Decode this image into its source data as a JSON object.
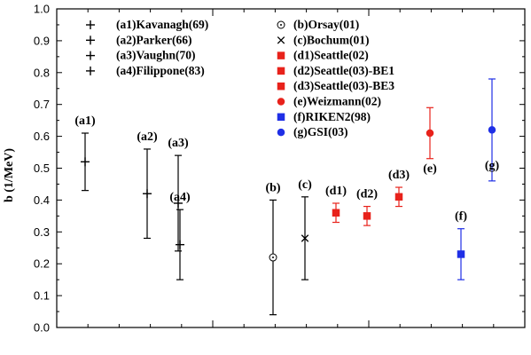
{
  "chart_data": {
    "type": "scatter",
    "title": "",
    "xlabel": "",
    "ylabel": "b (1/MeV)",
    "ylim": [
      0.0,
      1.0
    ],
    "yticks": [
      "0.0",
      "0.1",
      "0.2",
      "0.3",
      "0.4",
      "0.5",
      "0.6",
      "0.7",
      "0.8",
      "0.9",
      "1.0"
    ],
    "x_tick_labels": "none",
    "grid": false,
    "legend_position": "top",
    "series": [
      {
        "label": "(a1)",
        "legend": "(a1)Kavanagh(69)",
        "marker": "plus",
        "color": "#000000",
        "y": 0.52,
        "y_low": 0.43,
        "y_high": 0.61
      },
      {
        "label": "(a2)",
        "legend": "(a2)Parker(66)",
        "marker": "plus",
        "color": "#000000",
        "y": 0.42,
        "y_low": 0.28,
        "y_high": 0.56
      },
      {
        "label": "(a3)",
        "legend": "(a3)Vaughn(70)",
        "marker": "plus",
        "color": "#000000",
        "y": 0.39,
        "y_low": 0.24,
        "y_high": 0.54
      },
      {
        "label": "(a4)",
        "legend": "(a4)Filippone(83)",
        "marker": "plus",
        "color": "#000000",
        "y": 0.26,
        "y_low": 0.15,
        "y_high": 0.37
      },
      {
        "label": "(b)",
        "legend": "(b)Orsay(01)",
        "marker": "circle-dot",
        "color": "#000000",
        "y": 0.22,
        "y_low": 0.04,
        "y_high": 0.4
      },
      {
        "label": "(c)",
        "legend": "(c)Bochum(01)",
        "marker": "cross",
        "color": "#000000",
        "y": 0.28,
        "y_low": 0.15,
        "y_high": 0.41
      },
      {
        "label": "(d1)",
        "legend": "(d1)Seattle(02)",
        "marker": "square",
        "color": "#e8221b",
        "y": 0.36,
        "y_low": 0.33,
        "y_high": 0.39
      },
      {
        "label": "(d2)",
        "legend": "(d2)Seattle(03)-BE1",
        "marker": "square",
        "color": "#e8221b",
        "y": 0.35,
        "y_low": 0.32,
        "y_high": 0.38
      },
      {
        "label": "(d3)",
        "legend": "(d3)Seattle(03)-BE3",
        "marker": "square",
        "color": "#e8221b",
        "y": 0.41,
        "y_low": 0.38,
        "y_high": 0.44
      },
      {
        "label": "(e)",
        "legend": "(e)Weizmann(02)",
        "marker": "circle",
        "color": "#e8221b",
        "y": 0.61,
        "y_low": 0.53,
        "y_high": 0.69
      },
      {
        "label": "(f)",
        "legend": "(f)RIKEN2(98)",
        "marker": "square",
        "color": "#1f2fe6",
        "y": 0.23,
        "y_low": 0.15,
        "y_high": 0.31
      },
      {
        "label": "(g)",
        "legend": "(g)GSI(03)",
        "marker": "circle",
        "color": "#1f2fe6",
        "y": 0.62,
        "y_low": 0.46,
        "y_high": 0.78
      }
    ]
  }
}
